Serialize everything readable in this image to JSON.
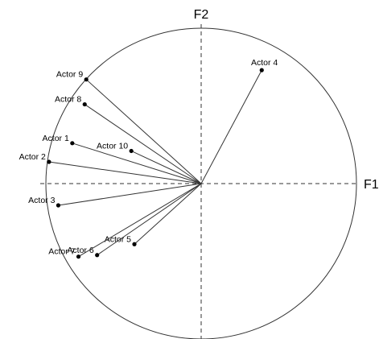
{
  "chart_data": {
    "type": "scatter",
    "title": "",
    "xlabel": "F1",
    "ylabel": "F2",
    "xlim": [
      -1,
      1
    ],
    "ylim": [
      -1,
      1
    ],
    "circle_radius": 1,
    "grid": false,
    "points": [
      {
        "label": "Actor 1",
        "x": -0.83,
        "y": 0.26
      },
      {
        "label": "Actor 2",
        "x": -0.98,
        "y": 0.14
      },
      {
        "label": "Actor 3",
        "x": -0.92,
        "y": -0.14
      },
      {
        "label": "Actor 4",
        "x": 0.39,
        "y": 0.73
      },
      {
        "label": "Actor 5",
        "x": -0.43,
        "y": -0.39
      },
      {
        "label": "Actor 6",
        "x": -0.67,
        "y": -0.46
      },
      {
        "label": "Actor 7",
        "x": -0.79,
        "y": -0.47
      },
      {
        "label": "Actor 8",
        "x": -0.75,
        "y": 0.51
      },
      {
        "label": "Actor 9",
        "x": -0.74,
        "y": 0.67
      },
      {
        "label": "Actor 10",
        "x": -0.45,
        "y": 0.21
      }
    ]
  }
}
